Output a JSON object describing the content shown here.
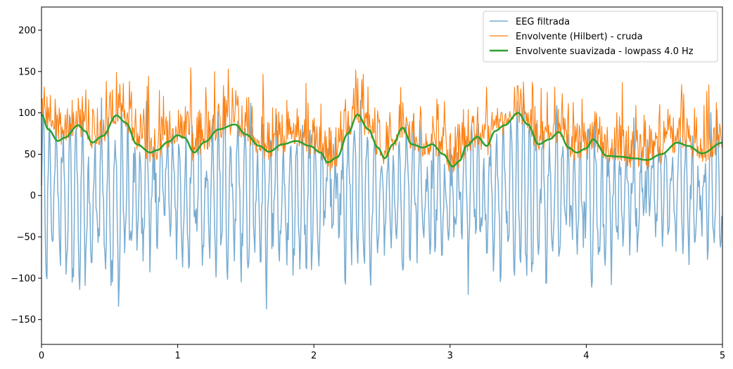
{
  "chart_data": {
    "type": "line",
    "xlim": [
      0,
      5
    ],
    "ylim": [
      -180,
      228
    ],
    "x_ticks": [
      0,
      1,
      2,
      3,
      4,
      5
    ],
    "y_ticks": [
      -150,
      -100,
      -50,
      0,
      50,
      100,
      150,
      200
    ],
    "x_tick_labels": [
      "0",
      "1",
      "2",
      "3",
      "4",
      "5"
    ],
    "y_tick_labels": [
      "−150",
      "−100",
      "−50",
      "0",
      "50",
      "100",
      "150",
      "200"
    ],
    "grid": false,
    "legend_position": "top-right",
    "sample_count": 1000,
    "series": [
      {
        "name": "EEG filtrada",
        "color": "#1f77b4",
        "opacity": 0.6,
        "stroke": "thin"
      },
      {
        "name": "Envolvente (Hilbert) - cruda",
        "color": "#ff7f0e",
        "opacity": 1.0,
        "stroke": "thin"
      },
      {
        "name": "Envolvente suavizada - lowpass 4.0 Hz",
        "color": "#2ca02c",
        "opacity": 1.0,
        "stroke": "thick",
        "x": [
          0,
          0.05,
          0.12,
          0.17,
          0.27,
          0.32,
          0.37,
          0.45,
          0.55,
          0.62,
          0.7,
          0.8,
          0.85,
          0.93,
          1.0,
          1.05,
          1.12,
          1.2,
          1.3,
          1.42,
          1.5,
          1.6,
          1.67,
          1.77,
          1.87,
          1.97,
          2.05,
          2.1,
          2.17,
          2.25,
          2.32,
          2.4,
          2.47,
          2.52,
          2.58,
          2.65,
          2.72,
          2.8,
          2.87,
          2.95,
          3.02,
          3.07,
          3.12,
          3.2,
          3.27,
          3.33,
          3.4,
          3.5,
          3.57,
          3.65,
          3.73,
          3.8,
          3.87,
          3.93,
          4.0,
          4.05,
          4.15,
          4.25,
          4.35,
          4.45,
          4.55,
          4.67,
          4.75,
          4.85,
          5.0
        ],
        "values": [
          98,
          80,
          66,
          70,
          85,
          78,
          64,
          72,
          97,
          88,
          62,
          52,
          55,
          65,
          73,
          70,
          52,
          65,
          80,
          86,
          74,
          60,
          53,
          62,
          66,
          60,
          52,
          40,
          46,
          75,
          98,
          80,
          58,
          45,
          62,
          82,
          62,
          58,
          62,
          50,
          35,
          42,
          60,
          71,
          60,
          78,
          85,
          100,
          86,
          62,
          68,
          77,
          58,
          52,
          57,
          68,
          48,
          47,
          45,
          43,
          50,
          64,
          60,
          51,
          64
        ]
      }
    ]
  }
}
